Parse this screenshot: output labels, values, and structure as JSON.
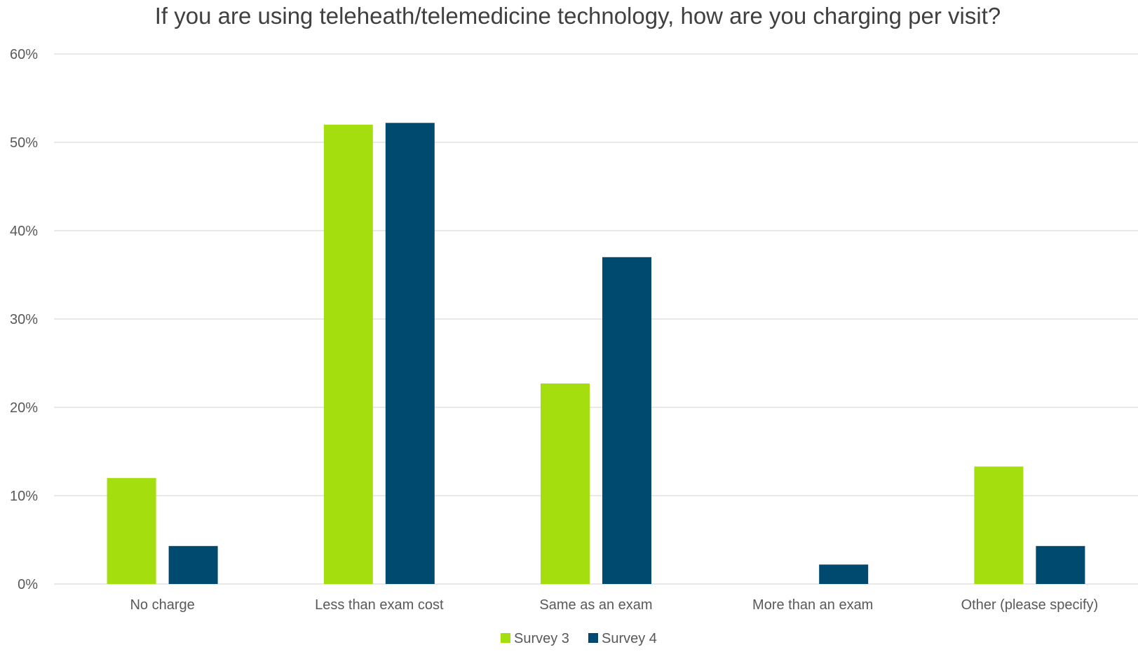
{
  "chart_data": {
    "type": "bar",
    "title": "If you are using teleheath/telemedicine technology, how are you charging per visit?",
    "categories": [
      "No charge",
      "Less than exam cost",
      "Same as an exam",
      "More than an exam",
      "Other (please specify)"
    ],
    "series": [
      {
        "name": "Survey 3",
        "color": "#a4de0f",
        "values": [
          12,
          52,
          22.7,
          0,
          13.3
        ]
      },
      {
        "name": "Survey 4",
        "color": "#004a6f",
        "values": [
          4.3,
          52.2,
          37,
          2.2,
          4.3
        ]
      }
    ],
    "xlabel": "",
    "ylabel": "",
    "ylim": [
      0,
      60
    ],
    "yticks": [
      0,
      10,
      20,
      30,
      40,
      50,
      60
    ],
    "ytick_labels": [
      "0%",
      "10%",
      "20%",
      "30%",
      "40%",
      "50%",
      "60%"
    ],
    "grid": true,
    "legend_position": "bottom"
  }
}
